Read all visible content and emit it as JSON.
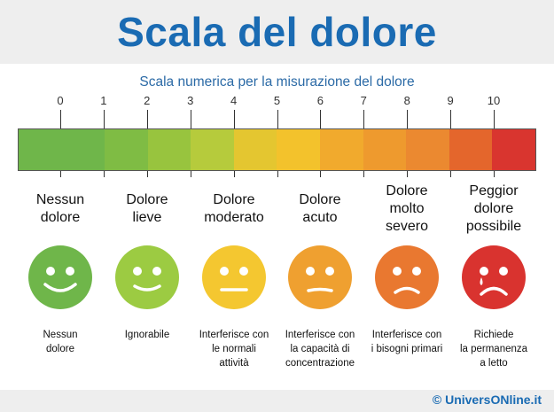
{
  "title": "Scala del dolore",
  "subtitle": "Scala numerica per la misurazione del dolore",
  "scale_ticks": [
    "0",
    "1",
    "2",
    "3",
    "4",
    "5",
    "6",
    "7",
    "8",
    "9",
    "10"
  ],
  "scale_colors": [
    "#6fb64a",
    "#89c13c",
    "#a9c93a",
    "#cfcf3c",
    "#f2c62a",
    "#f3ae2c",
    "#ef9a2e",
    "#ec8530",
    "#e6672c",
    "#e0502e",
    "#d9382f"
  ],
  "levels": [
    {
      "label_lines": [
        "Nessun",
        "dolore"
      ],
      "description_lines": [
        "Nessun",
        "dolore"
      ],
      "face_color": "#6fb64a",
      "mood": "happy"
    },
    {
      "label_lines": [
        "Dolore",
        "lieve"
      ],
      "description_lines": [
        "Ignorabile"
      ],
      "face_color": "#9ccb42",
      "mood": "smile"
    },
    {
      "label_lines": [
        "Dolore",
        "moderato"
      ],
      "description_lines": [
        "Interferisce con",
        "le normali",
        "attività"
      ],
      "face_color": "#f4c730",
      "mood": "neutral"
    },
    {
      "label_lines": [
        "Dolore",
        "acuto"
      ],
      "description_lines": [
        "Interferisce con",
        "la capacità di",
        "concentrazione"
      ],
      "face_color": "#efa030",
      "mood": "neutral-down"
    },
    {
      "label_lines": [
        "Dolore",
        "molto",
        "severo"
      ],
      "description_lines": [
        "Interferisce con",
        "i bisogni primari"
      ],
      "face_color": "#e97830",
      "mood": "sad"
    },
    {
      "label_lines": [
        "Peggior",
        "dolore",
        "possibile"
      ],
      "description_lines": [
        "Richiede",
        "la permanenza",
        "a letto"
      ],
      "face_color": "#d9332f",
      "mood": "crying"
    }
  ],
  "footer": {
    "copyright": "© UniversONline.it"
  }
}
